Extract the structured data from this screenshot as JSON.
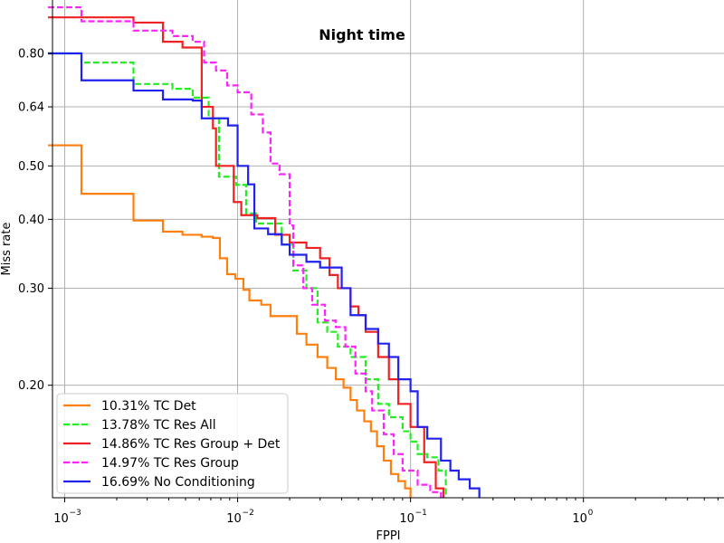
{
  "chart_data": {
    "type": "line",
    "title": "Night time",
    "xlabel": "FPPI",
    "ylabel": "Miss rate",
    "xscale": "log",
    "yscale": "log",
    "xlim": [
      0.00085,
      6.5
    ],
    "ylim": [
      0.125,
      1.0
    ],
    "x_ticks": [
      {
        "value": 0.001,
        "base": "10",
        "exp": "−3"
      },
      {
        "value": 0.01,
        "base": "10",
        "exp": "−2"
      },
      {
        "value": 0.1,
        "base": "10",
        "exp": "−1"
      },
      {
        "value": 1,
        "base": "10",
        "exp": "0"
      }
    ],
    "y_ticks": [
      {
        "value": 0.8,
        "label": "0.80"
      },
      {
        "value": 0.64,
        "label": "0.64"
      },
      {
        "value": 0.5,
        "label": "0.50"
      },
      {
        "value": 0.4,
        "label": "0.40"
      },
      {
        "value": 0.3,
        "label": "0.30"
      },
      {
        "value": 0.2,
        "label": "0.20"
      }
    ],
    "grid": true,
    "legend_position": "lower-left",
    "series": [
      {
        "name": "10.31%  TC Det",
        "color": "#ff7f0e",
        "dash": "solid",
        "points": [
          [
            0.0008,
            0.545
          ],
          [
            0.00125,
            0.545
          ],
          [
            0.00125,
            0.445
          ],
          [
            0.0025,
            0.445
          ],
          [
            0.0025,
            0.398
          ],
          [
            0.0037,
            0.398
          ],
          [
            0.0037,
            0.38
          ],
          [
            0.0048,
            0.38
          ],
          [
            0.0048,
            0.375
          ],
          [
            0.0062,
            0.375
          ],
          [
            0.0062,
            0.372
          ],
          [
            0.0072,
            0.372
          ],
          [
            0.0072,
            0.37
          ],
          [
            0.0079,
            0.37
          ],
          [
            0.0079,
            0.34
          ],
          [
            0.0087,
            0.34
          ],
          [
            0.0087,
            0.318
          ],
          [
            0.0097,
            0.318
          ],
          [
            0.0097,
            0.312
          ],
          [
            0.0108,
            0.312
          ],
          [
            0.0108,
            0.298
          ],
          [
            0.0117,
            0.298
          ],
          [
            0.0117,
            0.285
          ],
          [
            0.0137,
            0.285
          ],
          [
            0.0137,
            0.28
          ],
          [
            0.0155,
            0.28
          ],
          [
            0.0155,
            0.267
          ],
          [
            0.022,
            0.267
          ],
          [
            0.022,
            0.248
          ],
          [
            0.025,
            0.248
          ],
          [
            0.025,
            0.237
          ],
          [
            0.029,
            0.237
          ],
          [
            0.029,
            0.225
          ],
          [
            0.033,
            0.225
          ],
          [
            0.033,
            0.215
          ],
          [
            0.037,
            0.215
          ],
          [
            0.037,
            0.205
          ],
          [
            0.041,
            0.205
          ],
          [
            0.041,
            0.198
          ],
          [
            0.045,
            0.198
          ],
          [
            0.045,
            0.188
          ],
          [
            0.049,
            0.188
          ],
          [
            0.049,
            0.18
          ],
          [
            0.054,
            0.18
          ],
          [
            0.054,
            0.172
          ],
          [
            0.059,
            0.172
          ],
          [
            0.059,
            0.165
          ],
          [
            0.064,
            0.165
          ],
          [
            0.064,
            0.155
          ],
          [
            0.07,
            0.155
          ],
          [
            0.07,
            0.146
          ],
          [
            0.077,
            0.146
          ],
          [
            0.077,
            0.138
          ],
          [
            0.085,
            0.138
          ],
          [
            0.085,
            0.134
          ],
          [
            0.093,
            0.134
          ],
          [
            0.093,
            0.13
          ],
          [
            0.1,
            0.13
          ],
          [
            0.1,
            0.125
          ]
        ]
      },
      {
        "name": "13.78%  TC Res All",
        "color": "#22ee22",
        "dash": "dashed",
        "points": [
          [
            0.0008,
            0.8
          ],
          [
            0.00125,
            0.8
          ],
          [
            0.00125,
            0.77
          ],
          [
            0.0025,
            0.77
          ],
          [
            0.0025,
            0.704
          ],
          [
            0.0042,
            0.704
          ],
          [
            0.0042,
            0.69
          ],
          [
            0.0055,
            0.69
          ],
          [
            0.0055,
            0.665
          ],
          [
            0.0068,
            0.665
          ],
          [
            0.0068,
            0.61
          ],
          [
            0.0078,
            0.61
          ],
          [
            0.0078,
            0.478
          ],
          [
            0.0098,
            0.478
          ],
          [
            0.0098,
            0.462
          ],
          [
            0.0112,
            0.462
          ],
          [
            0.0112,
            0.41
          ],
          [
            0.0128,
            0.41
          ],
          [
            0.0128,
            0.393
          ],
          [
            0.018,
            0.393
          ],
          [
            0.018,
            0.36
          ],
          [
            0.021,
            0.36
          ],
          [
            0.021,
            0.323
          ],
          [
            0.025,
            0.323
          ],
          [
            0.025,
            0.3
          ],
          [
            0.029,
            0.3
          ],
          [
            0.029,
            0.26
          ],
          [
            0.033,
            0.26
          ],
          [
            0.033,
            0.25
          ],
          [
            0.038,
            0.25
          ],
          [
            0.038,
            0.235
          ],
          [
            0.045,
            0.235
          ],
          [
            0.045,
            0.225
          ],
          [
            0.055,
            0.225
          ],
          [
            0.055,
            0.205
          ],
          [
            0.065,
            0.205
          ],
          [
            0.065,
            0.185
          ],
          [
            0.075,
            0.185
          ],
          [
            0.075,
            0.175
          ],
          [
            0.09,
            0.175
          ],
          [
            0.09,
            0.165
          ],
          [
            0.1,
            0.165
          ],
          [
            0.1,
            0.158
          ],
          [
            0.11,
            0.158
          ],
          [
            0.11,
            0.15
          ],
          [
            0.125,
            0.15
          ],
          [
            0.125,
            0.148
          ],
          [
            0.145,
            0.148
          ],
          [
            0.145,
            0.14
          ],
          [
            0.16,
            0.14
          ],
          [
            0.16,
            0.125
          ]
        ]
      },
      {
        "name": "14.86%  TC Res Group + Det",
        "color": "#ee2222",
        "dash": "solid",
        "points": [
          [
            0.0008,
            0.93
          ],
          [
            0.0025,
            0.93
          ],
          [
            0.0025,
            0.91
          ],
          [
            0.0037,
            0.91
          ],
          [
            0.0037,
            0.84
          ],
          [
            0.0048,
            0.84
          ],
          [
            0.0048,
            0.82
          ],
          [
            0.0062,
            0.82
          ],
          [
            0.0062,
            0.64
          ],
          [
            0.0072,
            0.64
          ],
          [
            0.0072,
            0.585
          ],
          [
            0.0075,
            0.585
          ],
          [
            0.0075,
            0.5
          ],
          [
            0.0095,
            0.5
          ],
          [
            0.0095,
            0.43
          ],
          [
            0.0105,
            0.43
          ],
          [
            0.0105,
            0.407
          ],
          [
            0.013,
            0.407
          ],
          [
            0.013,
            0.402
          ],
          [
            0.0165,
            0.402
          ],
          [
            0.0165,
            0.375
          ],
          [
            0.02,
            0.375
          ],
          [
            0.02,
            0.363
          ],
          [
            0.025,
            0.363
          ],
          [
            0.025,
            0.355
          ],
          [
            0.03,
            0.355
          ],
          [
            0.03,
            0.34
          ],
          [
            0.034,
            0.34
          ],
          [
            0.034,
            0.317
          ],
          [
            0.038,
            0.317
          ],
          [
            0.038,
            0.3
          ],
          [
            0.045,
            0.3
          ],
          [
            0.045,
            0.278
          ],
          [
            0.05,
            0.278
          ],
          [
            0.05,
            0.268
          ],
          [
            0.055,
            0.268
          ],
          [
            0.055,
            0.25
          ],
          [
            0.065,
            0.25
          ],
          [
            0.065,
            0.225
          ],
          [
            0.075,
            0.225
          ],
          [
            0.075,
            0.205
          ],
          [
            0.085,
            0.205
          ],
          [
            0.085,
            0.185
          ],
          [
            0.1,
            0.185
          ],
          [
            0.1,
            0.168
          ],
          [
            0.12,
            0.168
          ],
          [
            0.12,
            0.145
          ],
          [
            0.14,
            0.145
          ],
          [
            0.14,
            0.13
          ],
          [
            0.155,
            0.13
          ],
          [
            0.155,
            0.125
          ]
        ]
      },
      {
        "name": "14.97%  TC Res Group",
        "color": "#ff22ff",
        "dash": "dashed",
        "points": [
          [
            0.0008,
            0.97
          ],
          [
            0.00125,
            0.97
          ],
          [
            0.00125,
            0.915
          ],
          [
            0.0025,
            0.915
          ],
          [
            0.0025,
            0.88
          ],
          [
            0.0042,
            0.88
          ],
          [
            0.0042,
            0.86
          ],
          [
            0.0055,
            0.86
          ],
          [
            0.0055,
            0.84
          ],
          [
            0.0064,
            0.84
          ],
          [
            0.0064,
            0.77
          ],
          [
            0.0075,
            0.77
          ],
          [
            0.0075,
            0.745
          ],
          [
            0.0087,
            0.745
          ],
          [
            0.0087,
            0.7
          ],
          [
            0.01,
            0.7
          ],
          [
            0.01,
            0.68
          ],
          [
            0.012,
            0.68
          ],
          [
            0.012,
            0.62
          ],
          [
            0.014,
            0.62
          ],
          [
            0.014,
            0.575
          ],
          [
            0.0155,
            0.575
          ],
          [
            0.0155,
            0.505
          ],
          [
            0.0175,
            0.505
          ],
          [
            0.0175,
            0.483
          ],
          [
            0.02,
            0.483
          ],
          [
            0.02,
            0.39
          ],
          [
            0.021,
            0.39
          ],
          [
            0.021,
            0.33
          ],
          [
            0.024,
            0.33
          ],
          [
            0.024,
            0.3
          ],
          [
            0.027,
            0.3
          ],
          [
            0.027,
            0.28
          ],
          [
            0.032,
            0.28
          ],
          [
            0.032,
            0.262
          ],
          [
            0.037,
            0.262
          ],
          [
            0.037,
            0.255
          ],
          [
            0.042,
            0.255
          ],
          [
            0.042,
            0.235
          ],
          [
            0.048,
            0.235
          ],
          [
            0.048,
            0.21
          ],
          [
            0.055,
            0.21
          ],
          [
            0.055,
            0.195
          ],
          [
            0.06,
            0.195
          ],
          [
            0.06,
            0.18
          ],
          [
            0.07,
            0.18
          ],
          [
            0.07,
            0.163
          ],
          [
            0.08,
            0.163
          ],
          [
            0.08,
            0.15
          ],
          [
            0.09,
            0.15
          ],
          [
            0.09,
            0.14
          ],
          [
            0.11,
            0.14
          ],
          [
            0.11,
            0.132
          ],
          [
            0.13,
            0.132
          ],
          [
            0.13,
            0.128
          ],
          [
            0.15,
            0.128
          ],
          [
            0.15,
            0.125
          ]
        ]
      },
      {
        "name": "16.69%  No Conditioning",
        "color": "#2222ee",
        "dash": "solid",
        "points": [
          [
            0.0008,
            0.8
          ],
          [
            0.00125,
            0.8
          ],
          [
            0.00125,
            0.715
          ],
          [
            0.0025,
            0.715
          ],
          [
            0.0025,
            0.685
          ],
          [
            0.0037,
            0.685
          ],
          [
            0.0037,
            0.66
          ],
          [
            0.0055,
            0.66
          ],
          [
            0.0055,
            0.657
          ],
          [
            0.0062,
            0.657
          ],
          [
            0.0062,
            0.61
          ],
          [
            0.0088,
            0.61
          ],
          [
            0.0088,
            0.592
          ],
          [
            0.01,
            0.592
          ],
          [
            0.01,
            0.5
          ],
          [
            0.0115,
            0.5
          ],
          [
            0.0115,
            0.463
          ],
          [
            0.0125,
            0.463
          ],
          [
            0.0125,
            0.385
          ],
          [
            0.015,
            0.385
          ],
          [
            0.015,
            0.376
          ],
          [
            0.018,
            0.376
          ],
          [
            0.018,
            0.36
          ],
          [
            0.02,
            0.36
          ],
          [
            0.02,
            0.345
          ],
          [
            0.025,
            0.345
          ],
          [
            0.025,
            0.335
          ],
          [
            0.03,
            0.335
          ],
          [
            0.03,
            0.327
          ],
          [
            0.04,
            0.327
          ],
          [
            0.04,
            0.3
          ],
          [
            0.045,
            0.3
          ],
          [
            0.045,
            0.268
          ],
          [
            0.055,
            0.268
          ],
          [
            0.055,
            0.253
          ],
          [
            0.065,
            0.253
          ],
          [
            0.065,
            0.238
          ],
          [
            0.075,
            0.238
          ],
          [
            0.075,
            0.225
          ],
          [
            0.085,
            0.225
          ],
          [
            0.085,
            0.205
          ],
          [
            0.1,
            0.205
          ],
          [
            0.1,
            0.195
          ],
          [
            0.11,
            0.195
          ],
          [
            0.11,
            0.168
          ],
          [
            0.125,
            0.168
          ],
          [
            0.125,
            0.16
          ],
          [
            0.15,
            0.16
          ],
          [
            0.15,
            0.146
          ],
          [
            0.17,
            0.146
          ],
          [
            0.17,
            0.14
          ],
          [
            0.19,
            0.14
          ],
          [
            0.19,
            0.135
          ],
          [
            0.22,
            0.135
          ],
          [
            0.22,
            0.13
          ],
          [
            0.25,
            0.13
          ],
          [
            0.25,
            0.125
          ]
        ]
      }
    ]
  }
}
